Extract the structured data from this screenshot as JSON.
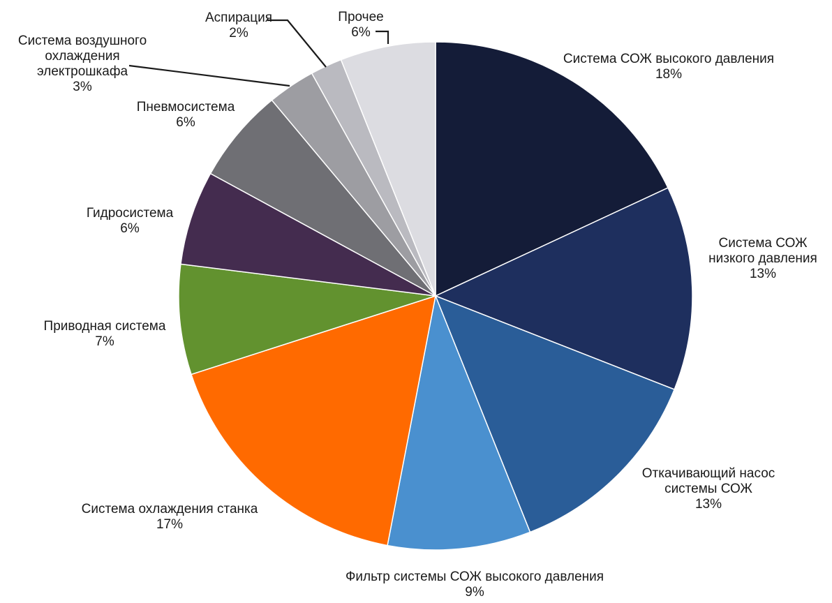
{
  "chart_data": {
    "type": "pie",
    "title": "",
    "start": "12 o'clock",
    "direction": "clockwise",
    "slices": [
      {
        "label": [
          "Система СОЖ высокого давления"
        ],
        "pct": "18%",
        "value": 18,
        "color": "#141c38"
      },
      {
        "label": [
          "Система СОЖ",
          "низкого давления"
        ],
        "pct": "13%",
        "value": 13,
        "color": "#1e2f5e"
      },
      {
        "label": [
          "Откачивающий насос",
          "системы СОЖ"
        ],
        "pct": "13%",
        "value": 13,
        "color": "#2a5d98"
      },
      {
        "label": [
          "Фильтр системы СОЖ высокого давления"
        ],
        "pct": "9%",
        "value": 9,
        "color": "#4a90cf"
      },
      {
        "label": [
          "Система охлаждения станка"
        ],
        "pct": "17%",
        "value": 17,
        "color": "#ff6a00"
      },
      {
        "label": [
          "Приводная система"
        ],
        "pct": "7%",
        "value": 7,
        "color": "#62922f"
      },
      {
        "label": [
          "Гидросистема"
        ],
        "pct": "6%",
        "value": 6,
        "color": "#442c4f"
      },
      {
        "label": [
          "Пневмосистема"
        ],
        "pct": "6%",
        "value": 6,
        "color": "#6f6f74"
      },
      {
        "label": [
          "Система воздушного",
          "охлаждения",
          "электрошкафа"
        ],
        "pct": "3%",
        "value": 3,
        "color": "#9d9da2"
      },
      {
        "label": [
          "Аспирация"
        ],
        "pct": "2%",
        "value": 2,
        "color": "#babac0"
      },
      {
        "label": [
          "Прочее"
        ],
        "pct": "6%",
        "value": 6,
        "color": "#dcdce1"
      }
    ]
  }
}
